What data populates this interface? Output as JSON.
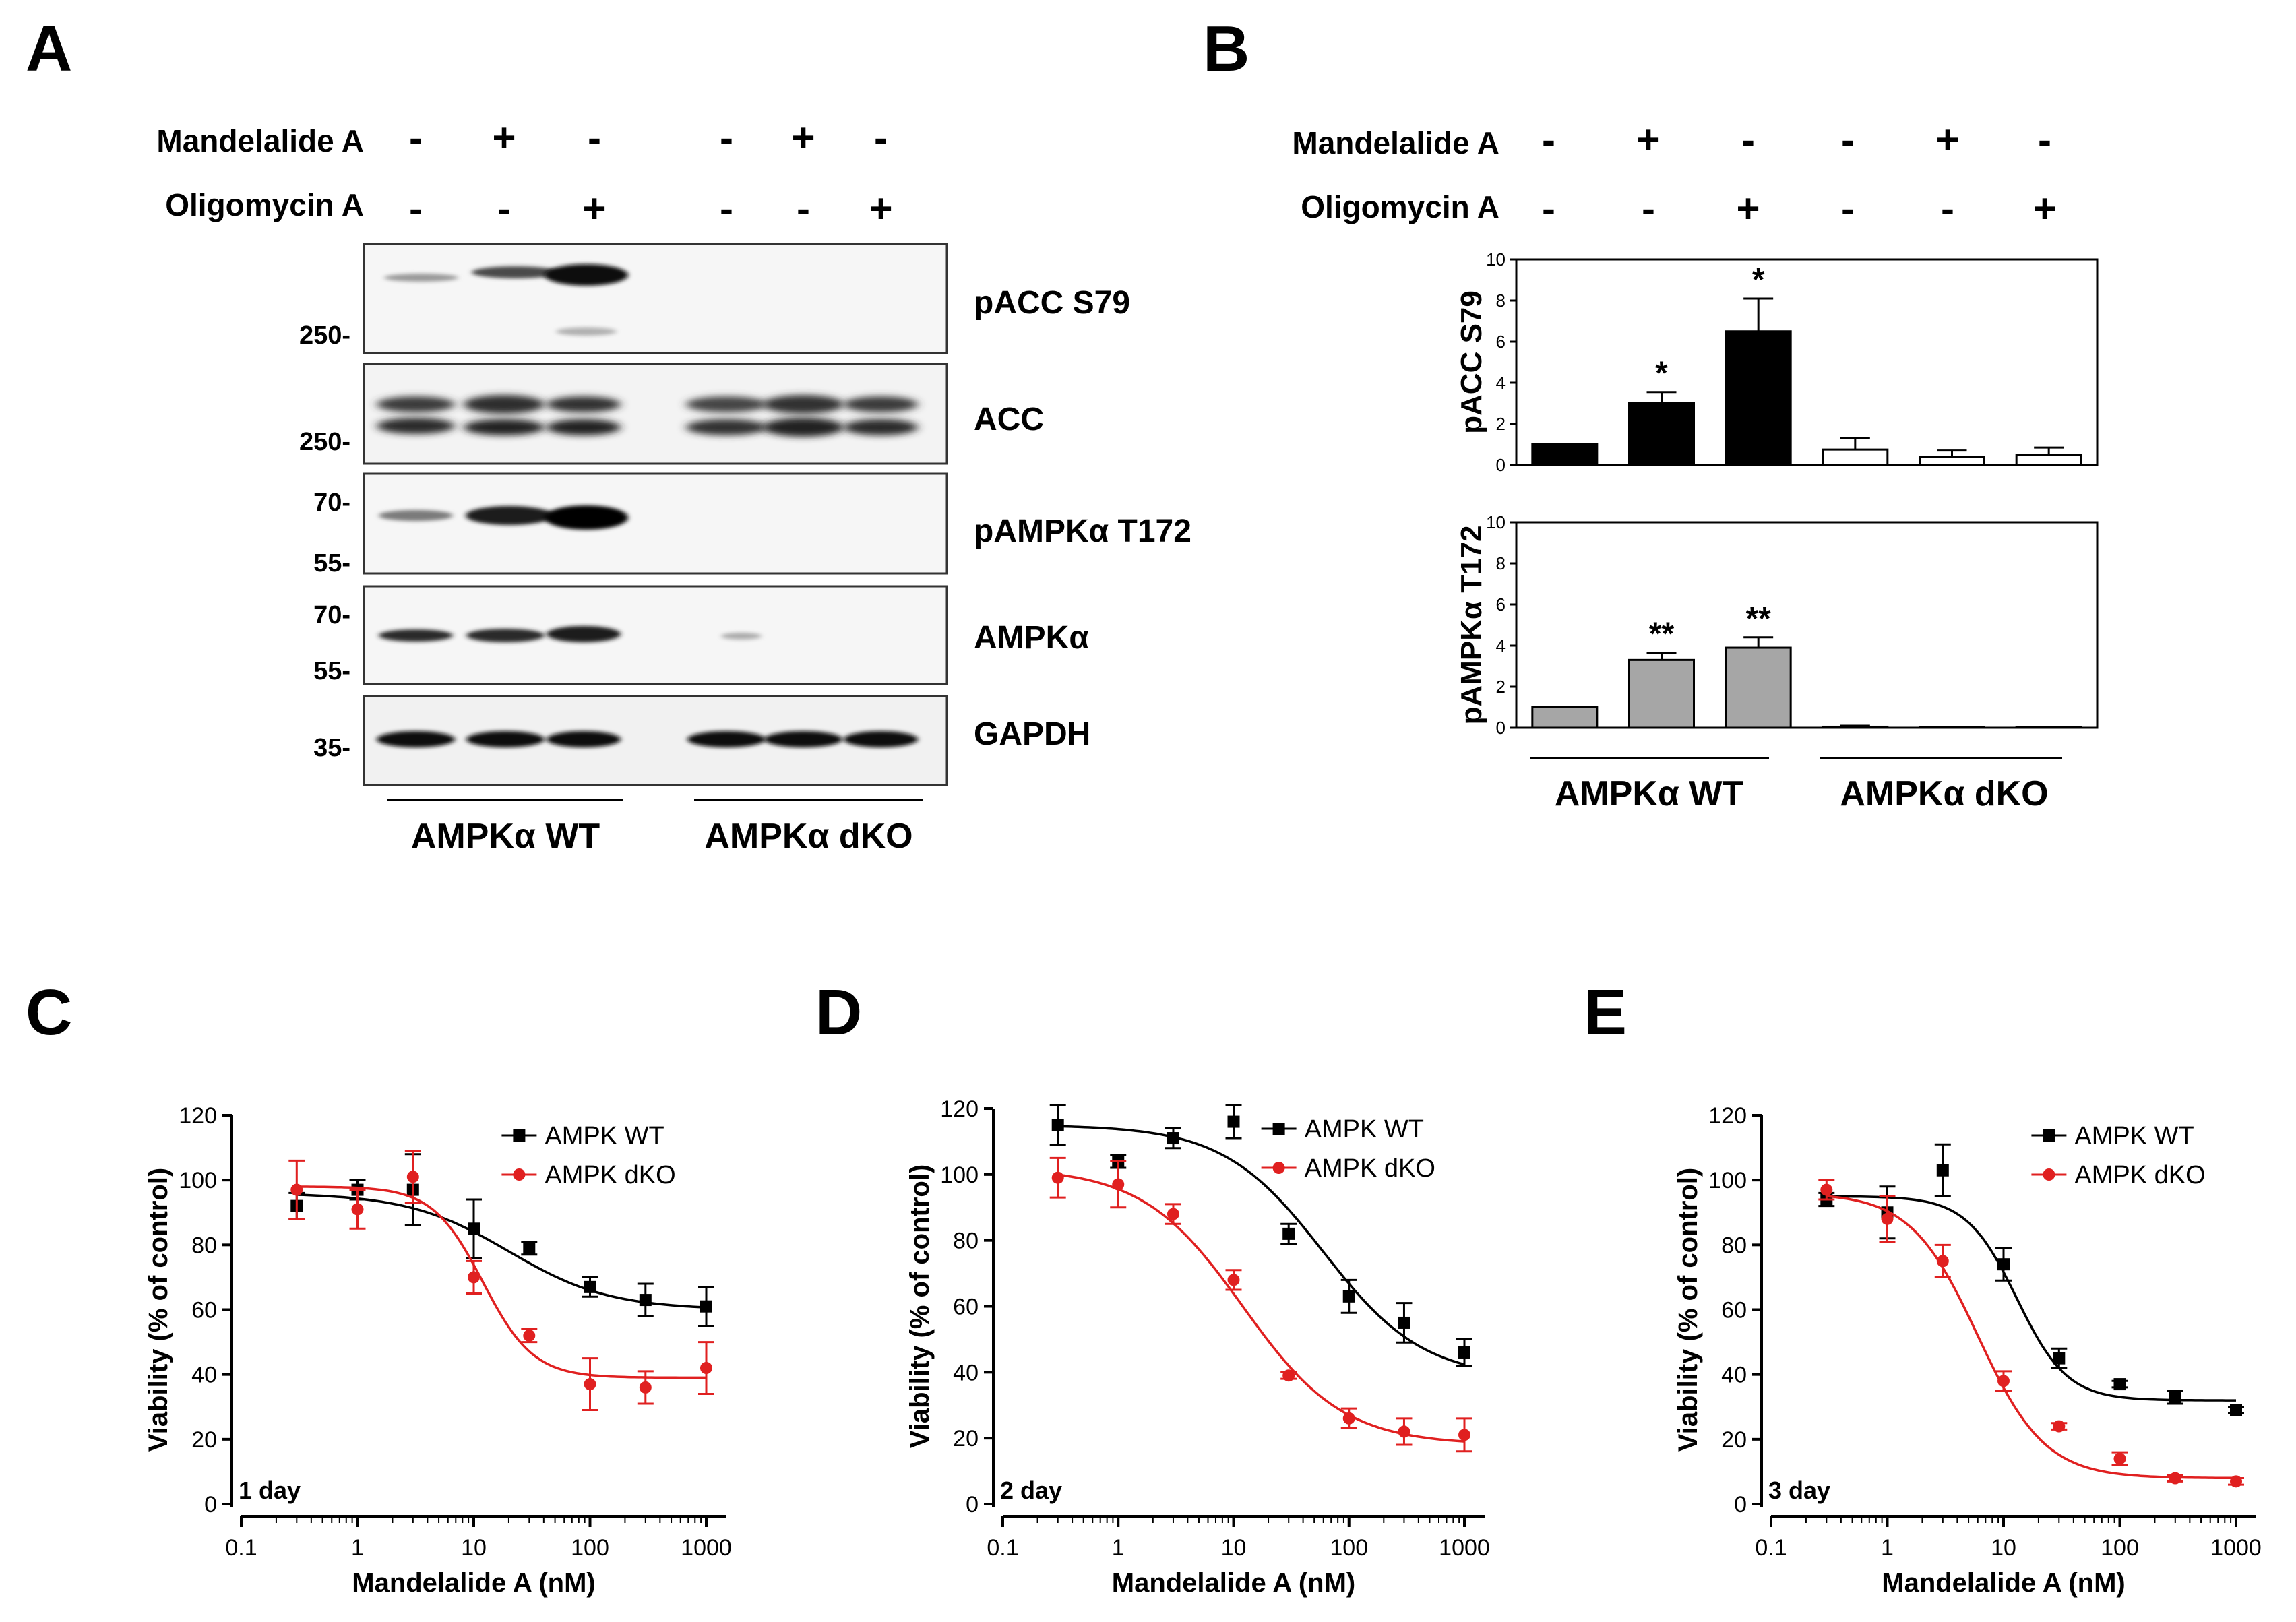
{
  "panel_labels": {
    "a": "A",
    "b": "B",
    "c": "C",
    "d": "D",
    "e": "E"
  },
  "treatments": {
    "row1_label": "Mandelalide A",
    "row2_label": "Oligomycin A",
    "mandelalide": [
      "-",
      "+",
      "-",
      "-",
      "+",
      "-"
    ],
    "oligomycin": [
      "-",
      "-",
      "+",
      "-",
      "-",
      "+"
    ]
  },
  "blot": {
    "bands": [
      "pACC S79",
      "ACC",
      "pAMPKα T172",
      "AMPKα",
      "GAPDH"
    ],
    "markers": {
      "pacc": [
        "250-"
      ],
      "acc": [
        "250-"
      ],
      "pampk": [
        "70-",
        "55-"
      ],
      "ampk": [
        "70-",
        "55-"
      ],
      "gapdh": [
        "35-"
      ]
    },
    "groups": [
      "AMPKα WT",
      "AMPKα dKO"
    ]
  },
  "colors": {
    "wt": "#000000",
    "dko": "#e02020",
    "gray_bar": "#a6a6a6"
  },
  "chart_data": [
    {
      "id": "B-top",
      "type": "bar",
      "title": "",
      "ylabel": "pACC S79",
      "ylim": [
        0,
        10
      ],
      "yticks": [
        "0",
        "2",
        "4",
        "6",
        "8",
        "10"
      ],
      "values": [
        1.0,
        3.0,
        6.5,
        0.75,
        0.4,
        0.5
      ],
      "errors": [
        0.0,
        0.55,
        1.6,
        0.55,
        0.3,
        0.35
      ],
      "fills": [
        "black",
        "black",
        "black",
        "white",
        "white",
        "white"
      ],
      "annotations": [
        "",
        "*",
        "*",
        "",
        "",
        ""
      ],
      "groups": [
        "AMPKα WT",
        "AMPKα dKO"
      ]
    },
    {
      "id": "B-bottom",
      "type": "bar",
      "title": "",
      "ylabel": "pAMPKα T172",
      "ylim": [
        0,
        10
      ],
      "yticks": [
        "0",
        "2",
        "4",
        "6",
        "8",
        "10"
      ],
      "values": [
        1.0,
        3.3,
        3.9,
        0.05,
        0.03,
        0.02
      ],
      "errors": [
        0.0,
        0.35,
        0.5,
        0.05,
        0.0,
        0.0
      ],
      "fills": [
        "gray",
        "gray",
        "gray",
        "white",
        "white",
        "white"
      ],
      "annotations": [
        "",
        "**",
        "**",
        "",
        "",
        ""
      ],
      "groups": [
        "AMPKα WT",
        "AMPKα dKO"
      ]
    },
    {
      "id": "C",
      "type": "scatter",
      "subtitle": "1 day",
      "xlabel": "Mandelalide A (nM)",
      "ylabel": "Viability (% of control)",
      "xscale": "log",
      "xlim": [
        0.1,
        1000
      ],
      "ylim": [
        0,
        120
      ],
      "xticks": [
        "0.1",
        "1",
        "10",
        "100",
        "1000"
      ],
      "yticks": [
        "0",
        "20",
        "40",
        "60",
        "80",
        "100",
        "120"
      ],
      "legend": "top-right",
      "series": [
        {
          "name": "AMPK WT",
          "color": "wt",
          "marker": "square",
          "x": [
            0.3,
            1,
            3,
            10,
            30,
            100,
            300,
            1000
          ],
          "y": [
            92,
            97,
            97,
            85,
            79,
            67,
            63,
            61
          ],
          "err": [
            4,
            3,
            11,
            9,
            2,
            3,
            5,
            6
          ],
          "fit": {
            "top": 96,
            "bottom": 60,
            "ec50": 20,
            "hill": 1.0
          }
        },
        {
          "name": "AMPK dKO",
          "color": "dko",
          "marker": "circle",
          "x": [
            0.3,
            1,
            3,
            10,
            30,
            100,
            300,
            1000
          ],
          "y": [
            97,
            91,
            101,
            70,
            52,
            37,
            36,
            42
          ],
          "err": [
            9,
            6,
            8,
            5,
            2,
            8,
            5,
            8
          ],
          "fit": {
            "top": 98,
            "bottom": 39,
            "ec50": 12,
            "hill": 2.0
          }
        }
      ]
    },
    {
      "id": "D",
      "type": "scatter",
      "subtitle": "2 day",
      "xlabel": "Mandelalide A (nM)",
      "ylabel": "Viability (% of control)",
      "xscale": "log",
      "xlim": [
        0.1,
        1000
      ],
      "ylim": [
        0,
        120
      ],
      "xticks": [
        "0.1",
        "1",
        "10",
        "100",
        "1000"
      ],
      "yticks": [
        "0",
        "20",
        "40",
        "60",
        "80",
        "100",
        "120"
      ],
      "legend": "top-right",
      "series": [
        {
          "name": "AMPK WT",
          "color": "wt",
          "marker": "square",
          "x": [
            0.3,
            1,
            3,
            10,
            30,
            100,
            300,
            1000
          ],
          "y": [
            115,
            104,
            111,
            116,
            82,
            63,
            55,
            46
          ],
          "err": [
            6,
            2,
            3,
            5,
            3,
            5,
            6,
            4
          ],
          "fit": {
            "top": 115,
            "bottom": 38,
            "ec50": 60,
            "hill": 1.0
          }
        },
        {
          "name": "AMPK dKO",
          "color": "dko",
          "marker": "circle",
          "x": [
            0.3,
            1,
            3,
            10,
            30,
            100,
            300,
            1000
          ],
          "y": [
            99,
            97,
            88,
            68,
            39,
            26,
            22,
            21
          ],
          "err": [
            6,
            7,
            3,
            3,
            1,
            3,
            4,
            5
          ],
          "fit": {
            "top": 102,
            "bottom": 18,
            "ec50": 12,
            "hill": 1.0
          }
        }
      ]
    },
    {
      "id": "E",
      "type": "scatter",
      "subtitle": "3 day",
      "xlabel": "Mandelalide A (nM)",
      "ylabel": "Viability (% of control)",
      "xscale": "log",
      "xlim": [
        0.1,
        1000
      ],
      "ylim": [
        0,
        120
      ],
      "xticks": [
        "0.1",
        "1",
        "10",
        "100",
        "1000"
      ],
      "yticks": [
        "0",
        "20",
        "40",
        "60",
        "80",
        "100",
        "120"
      ],
      "legend": "top-right",
      "series": [
        {
          "name": "AMPK WT",
          "color": "wt",
          "marker": "square",
          "x": [
            0.3,
            1,
            3,
            10,
            30,
            100,
            300,
            1000
          ],
          "y": [
            94,
            90,
            103,
            74,
            45,
            37,
            33,
            29
          ],
          "err": [
            2,
            8,
            8,
            5,
            3,
            1,
            2,
            1
          ],
          "fit": {
            "top": 95,
            "bottom": 32,
            "ec50": 13,
            "hill": 2.0
          }
        },
        {
          "name": "AMPK dKO",
          "color": "dko",
          "marker": "circle",
          "x": [
            0.3,
            1,
            3,
            10,
            30,
            100,
            300,
            1000
          ],
          "y": [
            97,
            88,
            75,
            38,
            24,
            14,
            8,
            7
          ],
          "err": [
            3,
            7,
            5,
            3,
            1,
            2,
            1,
            1
          ],
          "fit": {
            "top": 96,
            "bottom": 8,
            "ec50": 6,
            "hill": 1.5
          }
        }
      ]
    }
  ]
}
